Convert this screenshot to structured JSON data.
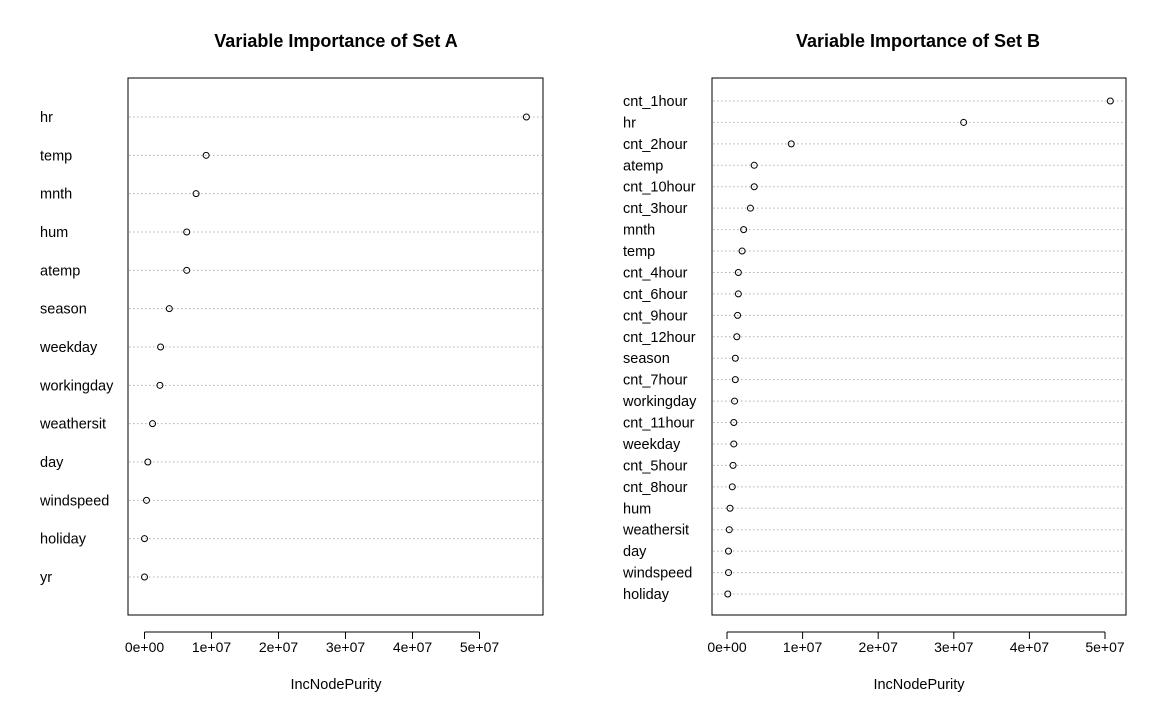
{
  "chart_data": [
    {
      "type": "scatter",
      "title": "Variable Importance of Set A",
      "xlabel": "IncNodePurity",
      "ylabel": "",
      "xlim": [
        0,
        58000000
      ],
      "xticks": [
        0,
        10000000,
        20000000,
        30000000,
        40000000,
        50000000
      ],
      "xtick_labels": [
        "0e+00",
        "1e+07",
        "2e+07",
        "3e+07",
        "4e+07",
        "5e+07"
      ],
      "grid": "dotted horizontal lines per variable",
      "categories": [
        "hr",
        "temp",
        "mnth",
        "hum",
        "atemp",
        "season",
        "weekday",
        "workingday",
        "weathersit",
        "day",
        "windspeed",
        "holiday",
        "yr"
      ],
      "values": [
        57000000,
        9200000,
        7700000,
        6300000,
        6300000,
        3700000,
        2400000,
        2300000,
        1200000,
        500000,
        300000,
        0,
        0
      ]
    },
    {
      "type": "scatter",
      "title": "Variable Importance of Set B",
      "xlabel": "IncNodePurity",
      "ylabel": "",
      "xlim": [
        0,
        53000000
      ],
      "xticks": [
        0,
        10000000,
        20000000,
        30000000,
        40000000,
        50000000
      ],
      "xtick_labels": [
        "0e+00",
        "1e+07",
        "2e+07",
        "3e+07",
        "4e+07",
        "5e+07"
      ],
      "grid": "dotted horizontal lines per variable",
      "categories": [
        "cnt_1hour",
        "hr",
        "cnt_2hour",
        "atemp",
        "cnt_10hour",
        "cnt_3hour",
        "mnth",
        "temp",
        "cnt_4hour",
        "cnt_6hour",
        "cnt_9hour",
        "cnt_12hour",
        "season",
        "cnt_7hour",
        "workingday",
        "cnt_11hour",
        "weekday",
        "cnt_5hour",
        "cnt_8hour",
        "hum",
        "weathersit",
        "day",
        "windspeed",
        "holiday"
      ],
      "values": [
        50700000,
        31300000,
        8500000,
        3600000,
        3600000,
        3100000,
        2200000,
        2000000,
        1500000,
        1500000,
        1400000,
        1300000,
        1100000,
        1100000,
        1000000,
        900000,
        900000,
        800000,
        700000,
        400000,
        300000,
        200000,
        200000,
        100000
      ]
    }
  ]
}
